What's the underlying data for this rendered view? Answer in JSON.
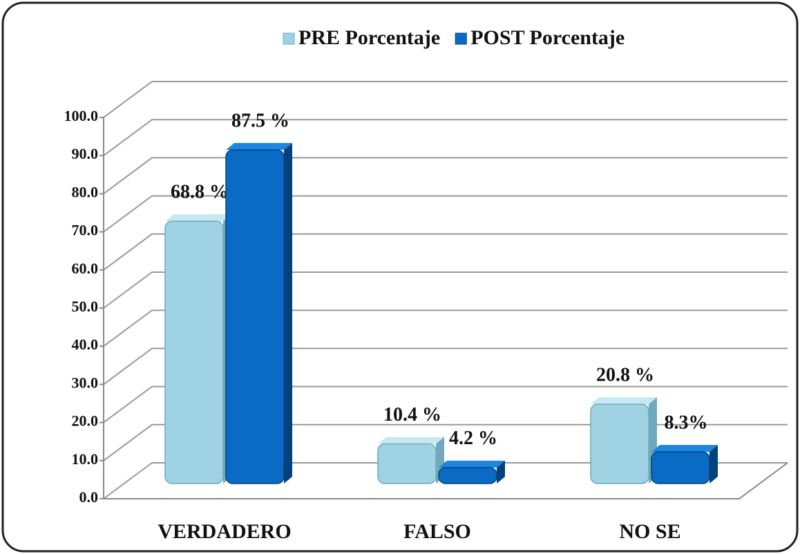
{
  "chart_data": {
    "type": "bar3d",
    "categories": [
      "VERDADERO",
      "FALSO",
      "NO SE"
    ],
    "series": [
      {
        "name": "PRE Porcentaje",
        "color": "#9fd3e3",
        "values": [
          68.8,
          10.4,
          20.8
        ],
        "value_labels": [
          "68.8 %",
          "10.4 %",
          "20.8 %"
        ]
      },
      {
        "name": "POST Porcentaje",
        "color": "#0a6bc4",
        "values": [
          87.5,
          4.2,
          8.3
        ],
        "value_labels": [
          "87.5 %",
          "4.2 %",
          "8.3%"
        ]
      }
    ],
    "ylim": [
      0,
      100
    ],
    "yticks": [
      {
        "value": 0,
        "label": "0.0"
      },
      {
        "value": 10,
        "label": "10.0"
      },
      {
        "value": 20,
        "label": "20.0"
      },
      {
        "value": 30,
        "label": "30.0"
      },
      {
        "value": 40,
        "label": "40.0"
      },
      {
        "value": 50,
        "label": "50.0"
      },
      {
        "value": 60,
        "label": "60.0"
      },
      {
        "value": 70,
        "label": "70.0"
      },
      {
        "value": 80,
        "label": "80.0"
      },
      {
        "value": 90,
        "label": "90.0"
      },
      {
        "value": 100,
        "label": "100.0"
      }
    ],
    "grid": true,
    "legend": "top"
  }
}
